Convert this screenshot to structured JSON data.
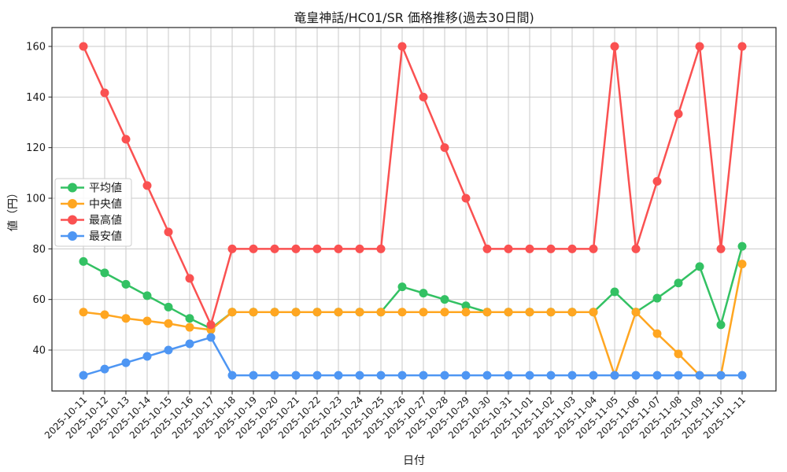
{
  "chart_data": {
    "type": "line",
    "title": "竜皇神話/HC01/SR 価格推移(過去30日間)",
    "xlabel": "日付",
    "ylabel": "値（円）",
    "grid": true,
    "x_tick_rotation_deg": 45,
    "ylim": [
      23.8,
      167.5
    ],
    "yticks": [
      40,
      60,
      80,
      100,
      120,
      140,
      160
    ],
    "legend_position": "center-left",
    "categories": [
      "2025-10-11",
      "2025-10-12",
      "2025-10-13",
      "2025-10-14",
      "2025-10-15",
      "2025-10-16",
      "2025-10-17",
      "2025-10-18",
      "2025-10-19",
      "2025-10-20",
      "2025-10-21",
      "2025-10-22",
      "2025-10-23",
      "2025-10-24",
      "2025-10-25",
      "2025-10-26",
      "2025-10-27",
      "2025-10-28",
      "2025-10-29",
      "2025-10-30",
      "2025-10-31",
      "2025-11-01",
      "2025-11-02",
      "2025-11-03",
      "2025-11-04",
      "2025-11-05",
      "2025-11-06",
      "2025-11-07",
      "2025-11-08",
      "2025-11-09",
      "2025-11-10",
      "2025-11-11"
    ],
    "series": [
      {
        "key": "average",
        "name": "平均値",
        "color": "#33c163",
        "values": [
          75,
          70.5,
          66,
          61.5,
          57,
          52.5,
          48.5,
          55,
          55,
          55,
          55,
          55,
          55,
          55,
          55,
          65,
          62.5,
          60,
          57.5,
          55,
          55,
          55,
          55,
          55,
          55,
          63,
          55,
          60.5,
          66.5,
          73,
          50,
          81
        ]
      },
      {
        "key": "median",
        "name": "中央値",
        "color": "#ffa621",
        "values": [
          55,
          54,
          52.5,
          51.5,
          50.5,
          49,
          48,
          55,
          55,
          55,
          55,
          55,
          55,
          55,
          55,
          55,
          55,
          55,
          55,
          55,
          55,
          55,
          55,
          55,
          55,
          30,
          55,
          46.5,
          38.5,
          30,
          30,
          74
        ]
      },
      {
        "key": "maximum",
        "name": "最高値",
        "color": "#fa5151",
        "values": [
          160,
          141.67,
          123.33,
          105,
          86.67,
          68.33,
          50,
          80,
          80,
          80,
          80,
          80,
          80,
          80,
          80,
          160,
          140,
          120,
          100,
          80,
          80,
          80,
          80,
          80,
          80,
          160,
          80,
          106.67,
          133.33,
          160,
          80,
          160
        ]
      },
      {
        "key": "minimum",
        "name": "最安値",
        "color": "#4e96f3",
        "values": [
          30,
          32.5,
          35,
          37.5,
          40,
          42.5,
          45,
          30,
          30,
          30,
          30,
          30,
          30,
          30,
          30,
          30,
          30,
          30,
          30,
          30,
          30,
          30,
          30,
          30,
          30,
          30,
          30,
          30,
          30,
          30,
          30,
          30
        ]
      }
    ]
  }
}
